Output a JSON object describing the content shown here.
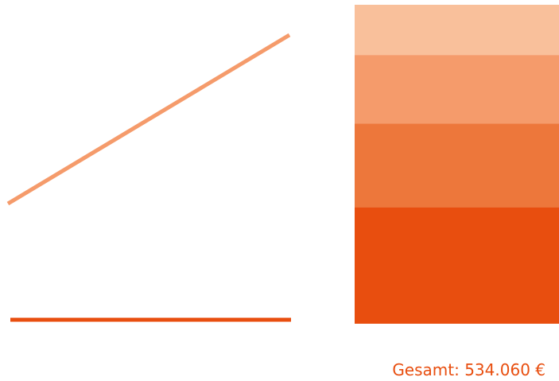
{
  "chart_data": {
    "type": "bar",
    "stacked": true,
    "title": "",
    "xlabel": "",
    "ylabel": "",
    "legend": "none",
    "grid": false,
    "axes_visible": false,
    "ylim": [
      0,
      534060
    ],
    "categories": [
      ""
    ],
    "series": [
      {
        "values": [
          195000
        ],
        "color": "#E84E0F"
      },
      {
        "values": [
          140000
        ],
        "color": "#ED773B"
      },
      {
        "values": [
          115000
        ],
        "color": "#F59B6B"
      },
      {
        "values": [
          84060
        ],
        "color": "#F9C09B"
      }
    ],
    "connectors": [
      {
        "from": "bottom",
        "shape": "flat",
        "color": "#E84E0F"
      },
      {
        "from": "top",
        "shape": "rising",
        "color": "#F59B6B"
      }
    ],
    "total": {
      "label": "Gesamt: 534.060 €",
      "value": 534060,
      "color": "#E84E0F"
    }
  }
}
